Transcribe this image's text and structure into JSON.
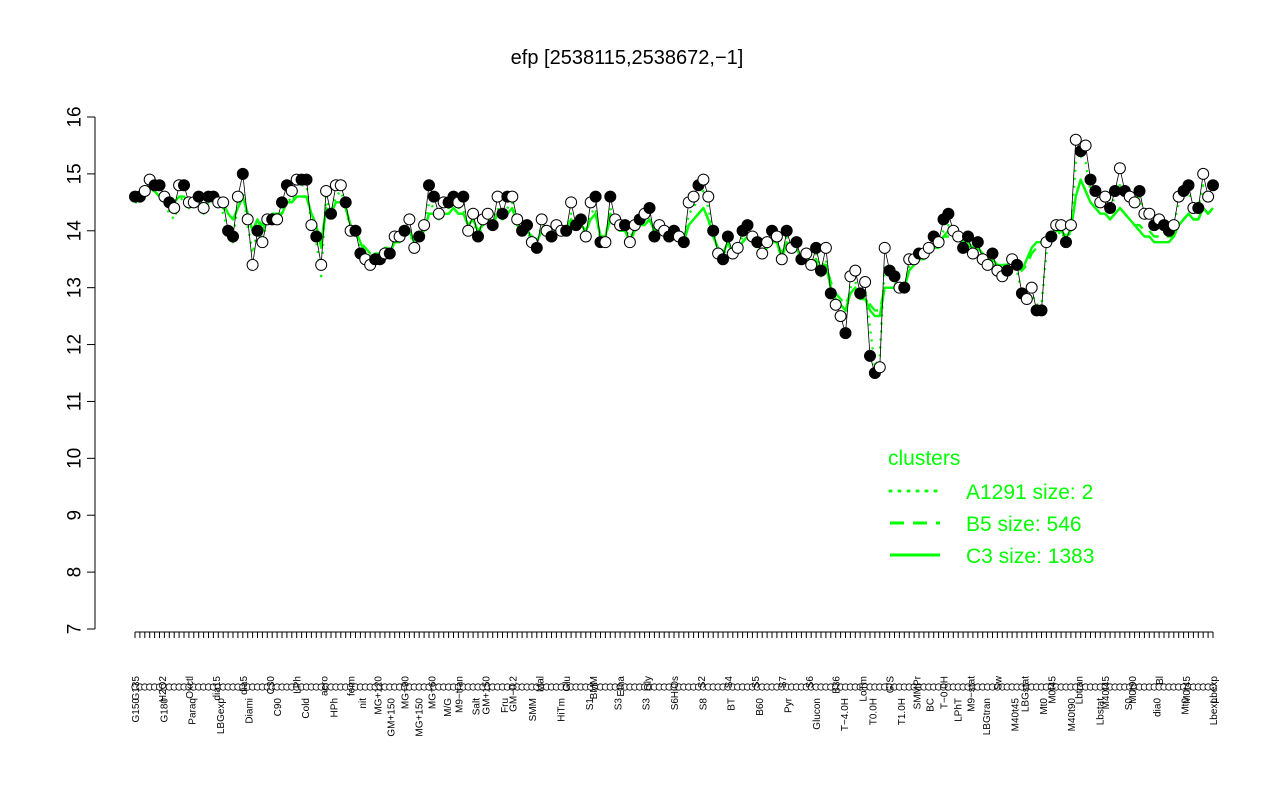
{
  "chart_data": {
    "type": "line",
    "title": "efp [2538115,2538672,−1]",
    "xlabel": "",
    "ylabel": "",
    "ylim": [
      7,
      16
    ],
    "yticks": [
      7,
      8,
      9,
      10,
      11,
      12,
      13,
      14,
      15,
      16
    ],
    "x_tick_labels_upper": [
      "G135",
      "H2O2",
      "Oxctl",
      "dia15",
      "dia5",
      "C30",
      "LPh",
      "aero",
      "ferm",
      "MG+120",
      "MG+90",
      "MG+60",
      "M9−tran",
      "GM+150",
      "GM−0.2",
      "Mal",
      "Glu",
      "BMM",
      "Etha",
      "Gly",
      "HiOs",
      "S2",
      "S4",
      "S5",
      "S7",
      "S6",
      "B36",
      "LoTm",
      "G/S",
      "SMMPr",
      "T−0.0H",
      "M9−stat",
      "Sw",
      "LBGstat",
      "M0t45",
      "Lbtran",
      "M40t45",
      "M0t90",
      "Bl",
      "M0t45",
      "Lbexp"
    ],
    "x_tick_labels_lower": [
      "G150",
      "G180",
      "Paraq",
      "LBGexp",
      "Diami",
      "C90",
      "Cold",
      "HPh",
      "nit",
      "GM+150",
      "MG+150",
      "M/G",
      "Salt",
      "Fru",
      "SMM",
      "HiTm",
      "S1",
      "S3",
      "S3",
      "S6",
      "S8",
      "BT",
      "B60",
      "Pyr",
      "Glucon",
      "T−4.0H",
      "T0.0H",
      "T1.0H",
      "BC",
      "LPhT",
      "LBGtran",
      "M40t45",
      "Mt0",
      "M40t90",
      "Lbstat",
      "S0",
      "dia0",
      "Mt0",
      "Lbexp"
    ],
    "legend": {
      "title": "clusters",
      "placement": "right",
      "entries": [
        {
          "label": "A1291 size: 2",
          "style": "dotted"
        },
        {
          "label": "B5 size: 546",
          "style": "dashed"
        },
        {
          "label": "C3 size: 1383",
          "style": "solid"
        }
      ]
    },
    "series": [
      {
        "style": "points",
        "values": [
          14.6,
          14.6,
          14.7,
          14.9,
          14.8,
          14.8,
          14.6,
          14.5,
          14.4,
          14.8,
          14.8,
          14.5,
          14.5,
          14.6,
          14.4,
          14.6,
          14.6,
          14.5,
          14.5,
          14.0,
          13.9,
          14.6,
          15.0,
          14.2,
          13.4,
          14.0,
          13.8,
          14.2,
          14.2,
          14.2,
          14.5,
          14.8,
          14.7,
          14.9,
          14.9,
          14.9,
          14.1,
          13.9,
          13.4,
          14.7,
          14.3,
          14.8,
          14.8,
          14.5,
          14.0,
          14.0,
          13.6,
          13.5,
          13.4,
          13.5,
          13.5,
          13.6,
          13.6,
          13.9,
          13.9,
          14.0,
          14.2,
          13.7,
          13.9,
          14.1,
          14.8,
          14.6,
          14.3,
          14.5,
          14.5,
          14.6,
          14.5,
          14.6,
          14.0,
          14.3,
          13.9,
          14.2,
          14.3,
          14.1,
          14.6,
          14.3,
          14.6,
          14.6,
          14.2,
          14.0,
          14.1,
          13.8,
          13.7,
          14.2,
          14.0,
          13.9,
          14.1,
          14.0,
          14.0,
          14.5,
          14.1,
          14.2,
          13.9,
          14.5,
          14.6,
          13.8,
          13.8,
          14.6,
          14.2,
          14.1,
          14.1,
          13.8,
          14.1,
          14.2,
          14.3,
          14.4,
          13.9,
          14.1,
          14.0,
          13.9,
          14.0,
          13.9,
          13.8,
          14.5,
          14.6,
          14.8,
          14.9,
          14.6,
          14.0,
          13.6,
          13.5,
          13.9,
          13.6,
          13.7,
          14.0,
          14.1,
          13.9,
          13.8,
          13.6,
          13.8,
          14.0,
          13.9,
          13.5,
          14.0,
          13.7,
          13.8,
          13.5,
          13.6,
          13.4,
          13.7,
          13.3,
          13.7,
          12.9,
          12.7,
          12.5,
          12.2,
          13.2,
          13.3,
          12.9,
          13.1,
          11.8,
          11.5,
          11.6,
          13.7,
          13.3,
          13.2,
          13.0,
          13.0,
          13.5,
          13.5,
          13.6,
          13.6,
          13.7,
          13.9,
          13.8,
          14.2,
          14.3,
          14.0,
          13.9,
          13.7,
          13.9,
          13.6,
          13.8,
          13.5,
          13.4,
          13.6,
          13.3,
          13.2,
          13.3,
          13.5,
          13.4,
          12.9,
          12.8,
          13.0,
          12.6,
          12.6,
          13.8,
          13.9,
          14.1,
          14.1,
          13.8,
          14.1,
          15.6,
          15.4,
          15.5,
          14.9,
          14.7,
          14.5,
          14.6,
          14.4,
          14.7,
          15.1,
          14.7,
          14.6,
          14.5,
          14.7,
          14.3,
          14.3,
          14.1,
          14.2,
          14.1,
          14.0,
          14.1,
          14.6,
          14.7,
          14.8,
          14.4,
          14.4,
          15.0,
          14.6,
          14.8
        ]
      },
      {
        "name": "A1291 size: 2",
        "style": "dotted",
        "values": [
          14.5,
          14.5,
          14.7,
          14.8,
          14.7,
          14.6,
          14.5,
          14.3,
          14.2,
          14.5,
          14.6,
          14.4,
          14.4,
          14.5,
          14.3,
          14.4,
          14.5,
          14.5,
          14.3,
          14.0,
          13.8,
          14.5,
          14.7,
          14.1,
          13.6,
          14.0,
          13.9,
          14.1,
          14.2,
          14.2,
          14.3,
          14.6,
          14.5,
          14.7,
          14.8,
          14.8,
          14.1,
          13.8,
          13.2,
          14.6,
          14.3,
          14.6,
          14.7,
          14.4,
          14.0,
          14.0,
          13.7,
          13.6,
          13.5,
          13.5,
          13.5,
          13.6,
          13.6,
          13.8,
          13.8,
          13.9,
          14.0,
          13.7,
          13.9,
          14.0,
          14.5,
          14.4,
          14.2,
          14.4,
          14.4,
          14.5,
          14.4,
          14.4,
          14.0,
          14.2,
          13.9,
          14.1,
          14.2,
          14.1,
          14.4,
          14.2,
          14.4,
          14.5,
          14.1,
          14.0,
          14.0,
          13.8,
          13.8,
          14.1,
          14.0,
          13.9,
          14.0,
          14.0,
          14.0,
          14.3,
          14.1,
          14.1,
          13.9,
          14.3,
          14.4,
          13.8,
          13.8,
          14.4,
          14.1,
          14.0,
          14.1,
          13.8,
          14.1,
          14.1,
          14.2,
          14.3,
          13.9,
          14.1,
          14.0,
          13.9,
          14.0,
          13.9,
          13.8,
          14.3,
          14.4,
          14.6,
          14.7,
          14.4,
          14.0,
          13.6,
          13.5,
          13.8,
          13.6,
          13.7,
          13.9,
          14.0,
          13.9,
          13.8,
          13.6,
          13.8,
          13.9,
          13.8,
          13.5,
          13.9,
          13.7,
          13.7,
          13.5,
          13.6,
          13.4,
          13.6,
          13.3,
          13.5,
          13.0,
          12.8,
          12.7,
          12.5,
          13.0,
          13.1,
          12.9,
          13.0,
          12.3,
          11.6,
          11.8,
          13.4,
          13.2,
          13.1,
          13.0,
          13.0,
          13.4,
          13.4,
          13.5,
          13.5,
          13.6,
          13.8,
          13.8,
          14.0,
          14.1,
          14.0,
          13.9,
          13.7,
          13.8,
          13.6,
          13.7,
          13.5,
          13.4,
          13.5,
          13.3,
          13.2,
          13.3,
          13.4,
          13.3,
          12.9,
          12.8,
          12.9,
          12.7,
          12.7,
          13.6,
          13.8,
          13.9,
          14.0,
          13.8,
          14.0,
          15.2,
          15.3,
          15.2,
          14.7,
          14.6,
          14.5,
          14.5,
          14.4,
          14.6,
          14.8,
          14.6,
          14.5,
          14.5,
          14.6,
          14.3,
          14.3,
          14.1,
          14.2,
          14.1,
          14.1,
          14.1,
          14.5,
          14.6,
          14.7,
          14.4,
          14.4,
          14.8,
          14.6,
          14.7
        ]
      },
      {
        "name": "B5 size: 546",
        "style": "dashed",
        "values": [
          14.6,
          14.6,
          14.7,
          14.7,
          14.7,
          14.6,
          14.6,
          14.5,
          14.5,
          14.6,
          14.6,
          14.5,
          14.5,
          14.5,
          14.4,
          14.5,
          14.5,
          14.5,
          14.4,
          14.3,
          14.2,
          14.4,
          14.6,
          14.3,
          14.0,
          14.2,
          14.1,
          14.2,
          14.3,
          14.3,
          14.3,
          14.5,
          14.5,
          14.6,
          14.6,
          14.6,
          14.3,
          14.1,
          13.8,
          14.4,
          14.3,
          14.5,
          14.5,
          14.4,
          14.1,
          14.0,
          13.8,
          13.7,
          13.6,
          13.6,
          13.6,
          13.7,
          13.7,
          13.8,
          13.9,
          13.9,
          14.0,
          13.8,
          13.9,
          14.0,
          14.3,
          14.3,
          14.2,
          14.3,
          14.3,
          14.4,
          14.3,
          14.3,
          14.1,
          14.2,
          14.0,
          14.1,
          14.2,
          14.1,
          14.3,
          14.2,
          14.3,
          14.3,
          14.1,
          14.0,
          14.0,
          13.9,
          13.9,
          14.0,
          14.0,
          13.9,
          14.0,
          14.0,
          14.0,
          14.2,
          14.1,
          14.1,
          14.0,
          14.2,
          14.3,
          13.9,
          13.9,
          14.2,
          14.1,
          14.0,
          14.0,
          13.9,
          14.0,
          14.1,
          14.1,
          14.2,
          14.0,
          14.0,
          14.0,
          13.9,
          13.9,
          13.9,
          13.8,
          14.1,
          14.2,
          14.3,
          14.4,
          14.2,
          13.9,
          13.7,
          13.6,
          13.8,
          13.6,
          13.7,
          13.8,
          13.9,
          13.8,
          13.8,
          13.6,
          13.7,
          13.8,
          13.8,
          13.6,
          13.8,
          13.7,
          13.7,
          13.5,
          13.6,
          13.4,
          13.5,
          13.3,
          13.4,
          13.1,
          12.9,
          12.8,
          12.7,
          12.9,
          13.0,
          12.9,
          12.9,
          12.7,
          12.6,
          12.6,
          13.0,
          13.0,
          13.0,
          13.0,
          13.0,
          13.3,
          13.4,
          13.5,
          13.5,
          13.6,
          13.7,
          13.7,
          13.9,
          13.9,
          13.9,
          13.9,
          13.8,
          13.8,
          13.7,
          13.7,
          13.6,
          13.5,
          13.5,
          13.4,
          13.4,
          13.4,
          13.5,
          13.4,
          13.3,
          13.4,
          13.6,
          13.7,
          13.8,
          13.8,
          13.9,
          14.0,
          14.0,
          13.9,
          14.0,
          14.6,
          14.9,
          14.7,
          14.5,
          14.4,
          14.3,
          14.3,
          14.2,
          14.3,
          14.4,
          14.3,
          14.2,
          14.1,
          14.1,
          14.0,
          14.0,
          13.9,
          13.9,
          13.9,
          13.9,
          13.9,
          14.1,
          14.2,
          14.3,
          14.2,
          14.2,
          14.4,
          14.3,
          14.4
        ]
      },
      {
        "name": "C3 size: 1383",
        "style": "solid",
        "values": [
          14.6,
          14.6,
          14.7,
          14.8,
          14.7,
          14.6,
          14.6,
          14.5,
          14.5,
          14.6,
          14.6,
          14.5,
          14.5,
          14.5,
          14.4,
          14.5,
          14.6,
          14.5,
          14.5,
          14.3,
          14.2,
          14.4,
          14.6,
          14.3,
          14.0,
          14.2,
          14.0,
          14.2,
          14.3,
          14.3,
          14.3,
          14.5,
          14.5,
          14.6,
          14.6,
          14.6,
          14.3,
          14.1,
          13.7,
          14.4,
          14.3,
          14.5,
          14.5,
          14.4,
          14.1,
          14.0,
          13.8,
          13.6,
          13.5,
          13.6,
          13.6,
          13.6,
          13.6,
          13.8,
          13.8,
          13.9,
          14.0,
          13.8,
          13.9,
          14.0,
          14.3,
          14.3,
          14.2,
          14.3,
          14.3,
          14.4,
          14.3,
          14.3,
          14.1,
          14.2,
          14.0,
          14.1,
          14.2,
          14.1,
          14.3,
          14.2,
          14.3,
          14.4,
          14.1,
          14.0,
          14.0,
          13.9,
          13.8,
          14.0,
          14.0,
          13.9,
          14.0,
          14.0,
          14.0,
          14.2,
          14.1,
          14.1,
          14.0,
          14.2,
          14.3,
          13.9,
          13.9,
          14.3,
          14.1,
          14.0,
          14.0,
          13.8,
          14.0,
          14.1,
          14.1,
          14.2,
          14.0,
          14.0,
          14.0,
          13.9,
          13.9,
          13.9,
          13.8,
          14.1,
          14.2,
          14.3,
          14.4,
          14.2,
          13.9,
          13.7,
          13.6,
          13.8,
          13.6,
          13.7,
          13.8,
          13.9,
          13.8,
          13.8,
          13.6,
          13.7,
          13.8,
          13.8,
          13.5,
          13.8,
          13.7,
          13.7,
          13.5,
          13.6,
          13.4,
          13.5,
          13.2,
          13.4,
          13.0,
          12.8,
          12.7,
          12.6,
          12.9,
          13.0,
          12.8,
          12.8,
          12.6,
          12.5,
          12.5,
          13.0,
          13.0,
          13.0,
          13.0,
          13.0,
          13.3,
          13.4,
          13.5,
          13.5,
          13.6,
          13.7,
          13.7,
          13.9,
          14.0,
          13.9,
          13.9,
          13.8,
          13.8,
          13.7,
          13.7,
          13.6,
          13.5,
          13.5,
          13.4,
          13.4,
          13.4,
          13.5,
          13.4,
          13.3,
          13.5,
          13.7,
          13.8,
          13.8,
          13.9,
          13.9,
          14.0,
          14.0,
          13.9,
          14.0,
          14.6,
          14.9,
          14.7,
          14.5,
          14.4,
          14.3,
          14.3,
          14.2,
          14.3,
          14.4,
          14.3,
          14.2,
          14.1,
          14.0,
          13.9,
          13.9,
          13.8,
          13.8,
          13.8,
          13.8,
          13.9,
          14.1,
          14.2,
          14.3,
          14.2,
          14.2,
          14.4,
          14.3,
          14.4
        ]
      }
    ]
  }
}
